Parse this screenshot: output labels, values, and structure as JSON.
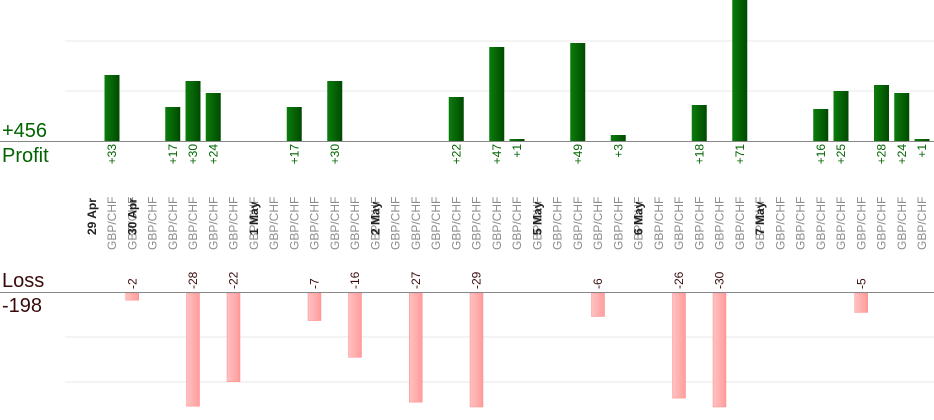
{
  "summary": {
    "profit_total": "+456",
    "profit_label": "Profit",
    "loss_label": "Loss",
    "loss_total": "-198"
  },
  "colors": {
    "profit_bar": "#0a7a0a",
    "profit_bar_dark": "#004d00",
    "profit_text": "#006400",
    "loss_bar": "#ffb3b3",
    "loss_bar_edge": "#ff8a8a",
    "loss_text": "#3a0a0a",
    "grid": "#e8e8e8",
    "axis": "#888888",
    "date_label": "#222222",
    "pair_label": "#8c8c8c"
  },
  "chart_data": {
    "type": "bar",
    "title": "",
    "series": [
      {
        "name": "Profit",
        "values": [
          33,
          0,
          0,
          17,
          30,
          24,
          0,
          0,
          0,
          17,
          0,
          30,
          0,
          0,
          0,
          0,
          0,
          22,
          0,
          47,
          1,
          0,
          0,
          49,
          0,
          3,
          0,
          0,
          0,
          18,
          0,
          71,
          0,
          0,
          0,
          16,
          25,
          0,
          28,
          24,
          1
        ]
      },
      {
        "name": "Loss",
        "values": [
          0,
          -2,
          0,
          0,
          -28,
          0,
          -22,
          0,
          0,
          0,
          -7,
          0,
          -16,
          0,
          0,
          -27,
          0,
          0,
          -29,
          0,
          0,
          0,
          0,
          0,
          -6,
          0,
          0,
          0,
          -26,
          0,
          -30,
          0,
          0,
          0,
          0,
          0,
          0,
          -5,
          0,
          0,
          0
        ]
      }
    ],
    "slots": [
      {
        "date": "29 Apr",
        "pair": "GBP/CHF"
      },
      {
        "pair": "GBP/CHF"
      },
      {
        "date": "30 Apr",
        "pair": "GBP/CHF"
      },
      {
        "pair": "GBP/CHF"
      },
      {
        "pair": "GBP/CHF"
      },
      {
        "pair": "GBP/CHF"
      },
      {
        "pair": "GBP/CHF"
      },
      {
        "pair": "GBP/CHF"
      },
      {
        "date": "1 May",
        "pair": "GBP/CHF"
      },
      {
        "pair": "GBP/CHF"
      },
      {
        "pair": "GBP/CHF"
      },
      {
        "pair": "GBP/CHF"
      },
      {
        "pair": "GBP/CHF"
      },
      {
        "pair": "GBP/CHF"
      },
      {
        "date": "2 May",
        "pair": "GBP/CHF"
      },
      {
        "pair": "GBP/CHF"
      },
      {
        "pair": "GBP/CHF"
      },
      {
        "pair": "GBP/CHF"
      },
      {
        "pair": "GBP/CHF"
      },
      {
        "pair": "GBP/CHF"
      },
      {
        "pair": "GBP/CHF"
      },
      {
        "pair": "GBP/CHF"
      },
      {
        "date": "5 May",
        "pair": "GBP/CHF"
      },
      {
        "pair": "GBP/CHF"
      },
      {
        "pair": "GBP/CHF"
      },
      {
        "pair": "GBP/CHF"
      },
      {
        "pair": "GBP/CHF"
      },
      {
        "date": "6 May",
        "pair": "GBP/CHF"
      },
      {
        "pair": "GBP/CHF"
      },
      {
        "pair": "GBP/CHF"
      },
      {
        "pair": "GBP/CHF"
      },
      {
        "pair": "GBP/CHF"
      },
      {
        "pair": "GBP/CHF"
      },
      {
        "date": "7 May",
        "pair": "GBP/CHF"
      },
      {
        "pair": "GBP/CHF"
      },
      {
        "pair": "GBP/CHF"
      },
      {
        "pair": "GBP/CHF"
      },
      {
        "pair": "GBP/CHF"
      },
      {
        "pair": "GBP/CHF"
      },
      {
        "pair": "GBP/CHF"
      },
      {
        "pair": "GBP/CHF"
      }
    ],
    "grid": true,
    "legend": "none"
  }
}
